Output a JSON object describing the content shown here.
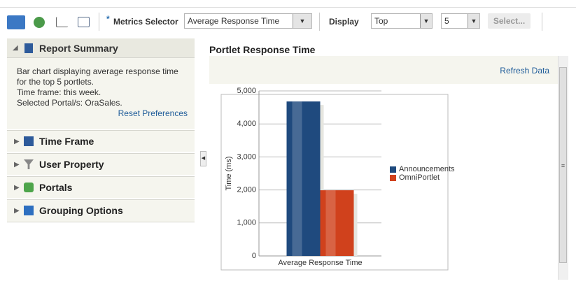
{
  "toolbar": {
    "required_marker": "*",
    "metrics_label": "Metrics Selector",
    "metric": "Average Response Time",
    "display_label": "Display",
    "display_mode": "Top",
    "display_count": "5",
    "select_button": "Select..."
  },
  "left_panel": {
    "title": "Report Summary",
    "description": [
      "Bar chart displaying average response time",
      "for the top 5 portlets.",
      "Time frame: this week.",
      "Selected Portal/s: OraSales."
    ],
    "reset_link": "Reset Preferences",
    "sections": [
      "Time Frame",
      "User Property",
      "Portals",
      "Grouping Options"
    ]
  },
  "right_panel": {
    "refresh_link": "Refresh Data"
  },
  "chart_data": {
    "type": "bar",
    "title": "Portlet Response Time",
    "ylabel": "Time (ms)",
    "categories": [
      "Average Response Time"
    ],
    "series": [
      {
        "name": "Announcements",
        "color": "#1f4a7e",
        "values": [
          4680
        ]
      },
      {
        "name": "OmniPortlet",
        "color": "#d0411c",
        "values": [
          1990
        ]
      }
    ],
    "ylim": [
      0,
      5000
    ],
    "yticks": [
      0,
      {
        "value": 1000,
        "label": "1,000"
      },
      {
        "value": 2000,
        "label": "2,000"
      },
      {
        "value": 3000,
        "label": "3,000"
      },
      {
        "value": 4000,
        "label": "4,000"
      },
      {
        "value": 5000,
        "label": "5,000"
      }
    ],
    "grid": true,
    "legend": "right"
  }
}
